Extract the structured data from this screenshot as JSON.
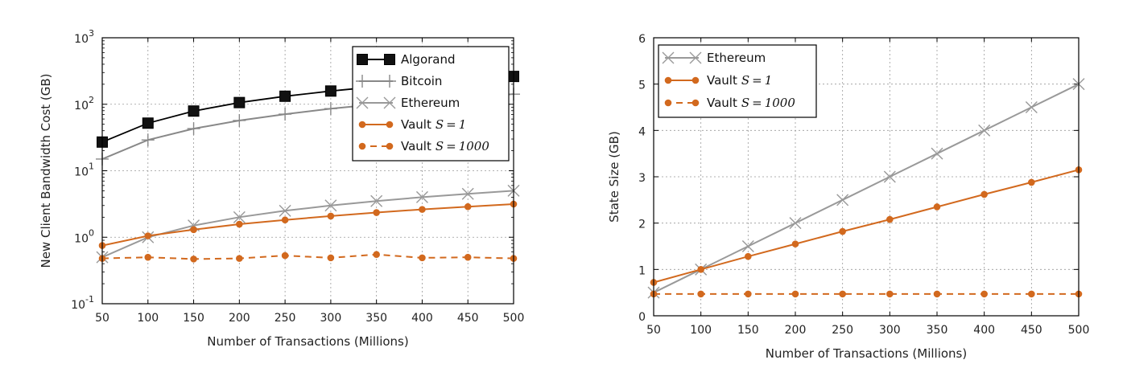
{
  "chart_data": [
    {
      "type": "line",
      "xlabel": "Number of Transactions (Millions)",
      "ylabel": "New Client Bandwidth Cost (GB)",
      "yscale": "log",
      "xlim": [
        50,
        500
      ],
      "ylim": [
        0.1,
        1000
      ],
      "grid": true,
      "legend": "top-right",
      "xticks": [
        "50",
        "100",
        "150",
        "200",
        "250",
        "300",
        "350",
        "400",
        "450",
        "500"
      ],
      "yticks": [
        {
          "value": 0.1,
          "base": "10",
          "exp": "-1"
        },
        {
          "value": 1,
          "base": "10",
          "exp": "0"
        },
        {
          "value": 10,
          "base": "10",
          "exp": "1"
        },
        {
          "value": 100,
          "base": "10",
          "exp": "2"
        },
        {
          "value": 1000,
          "base": "10",
          "exp": "3"
        }
      ],
      "x": [
        50,
        100,
        150,
        200,
        250,
        300,
        350,
        400,
        450,
        500
      ],
      "series": [
        {
          "name": "Algorand",
          "legend_text": "Algorand",
          "color": "#000000",
          "marker": "square",
          "dash": false,
          "values": [
            27,
            52,
            79,
            106,
            132,
            158,
            184,
            210,
            236,
            262
          ]
        },
        {
          "name": "Bitcoin",
          "legend_text": "Bitcoin",
          "color": "#888888",
          "marker": "plus",
          "dash": false,
          "values": [
            15,
            29,
            43,
            57,
            71,
            86,
            100,
            114,
            128,
            142
          ]
        },
        {
          "name": "Ethereum",
          "legend_text": "Ethereum",
          "color": "#999999",
          "marker": "x",
          "dash": false,
          "values": [
            0.5,
            1.0,
            1.5,
            2.0,
            2.5,
            3.0,
            3.5,
            4.0,
            4.5,
            5.0
          ]
        },
        {
          "name": "Vault S=1",
          "legend_text": "Vault",
          "legend_math": "S = 1",
          "color": "#d2691e",
          "marker": "dot",
          "dash": false,
          "values": [
            0.75,
            1.05,
            1.3,
            1.57,
            1.82,
            2.08,
            2.35,
            2.62,
            2.88,
            3.15
          ]
        },
        {
          "name": "Vault S=1000",
          "legend_text": "Vault",
          "legend_math": "S = 1000",
          "color": "#d2691e",
          "marker": "dot",
          "dash": true,
          "values": [
            0.48,
            0.5,
            0.47,
            0.48,
            0.53,
            0.49,
            0.55,
            0.49,
            0.5,
            0.48
          ]
        }
      ]
    },
    {
      "type": "line",
      "xlabel": "Number of Transactions (Millions)",
      "ylabel": "State Size (GB)",
      "yscale": "linear",
      "xlim": [
        50,
        500
      ],
      "ylim": [
        0,
        6
      ],
      "grid": true,
      "legend": "top-left",
      "xticks": [
        "50",
        "100",
        "150",
        "200",
        "250",
        "300",
        "350",
        "400",
        "450",
        "500"
      ],
      "yticks": [
        "0",
        "1",
        "2",
        "3",
        "4",
        "5",
        "6"
      ],
      "x": [
        50,
        100,
        150,
        200,
        250,
        300,
        350,
        400,
        450,
        500
      ],
      "series": [
        {
          "name": "Ethereum",
          "legend_text": "Ethereum",
          "color": "#999999",
          "marker": "x",
          "dash": false,
          "values": [
            0.5,
            1.0,
            1.5,
            2.0,
            2.5,
            3.0,
            3.5,
            4.0,
            4.5,
            5.0
          ]
        },
        {
          "name": "Vault S=1",
          "legend_text": "Vault",
          "legend_math": "S = 1",
          "color": "#d2691e",
          "marker": "dot",
          "dash": false,
          "values": [
            0.72,
            1.0,
            1.28,
            1.55,
            1.82,
            2.08,
            2.35,
            2.62,
            2.88,
            3.15
          ]
        },
        {
          "name": "Vault S=1000",
          "legend_text": "Vault",
          "legend_math": "S = 1000",
          "color": "#d2691e",
          "marker": "dot",
          "dash": true,
          "values": [
            0.47,
            0.47,
            0.47,
            0.47,
            0.47,
            0.47,
            0.47,
            0.47,
            0.47,
            0.47
          ]
        }
      ]
    }
  ]
}
